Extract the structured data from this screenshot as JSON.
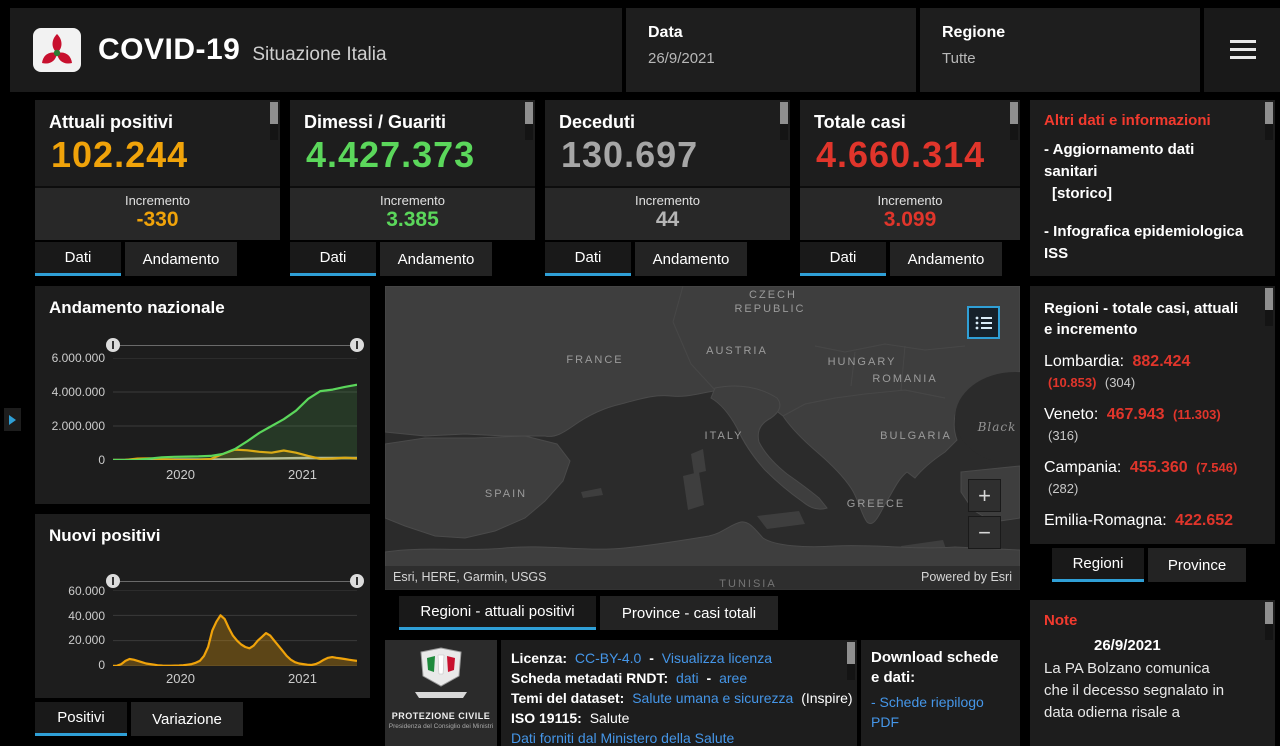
{
  "colors": {
    "accent_blue": "#2f9fd6",
    "link_blue": "#4596e8",
    "orange": "#f0a30a",
    "green": "#5bd75b",
    "gray": "#a6a6a6",
    "red": "#e0352b",
    "heading_red": "#f23a2e"
  },
  "labels": {
    "dati": "Dati",
    "andamento": "Andamento",
    "incremento": "Incremento"
  },
  "header": {
    "title": "COVID-19",
    "subtitle": "Situazione Italia",
    "data_label": "Data",
    "data_value": "26/9/2021",
    "regione_label": "Regione",
    "regione_value": "Tutte"
  },
  "cards": [
    {
      "title": "Attuali positivi",
      "value": "102.244",
      "increment": "-330",
      "color": "#f0a30a"
    },
    {
      "title": "Dimessi / Guariti",
      "value": "4.427.373",
      "increment": "3.385",
      "color": "#5bd75b"
    },
    {
      "title": "Deceduti",
      "value": "130.697",
      "increment": "44",
      "color": "#a6a6a6"
    },
    {
      "title": "Totale casi",
      "value": "4.660.314",
      "increment": "3.099",
      "color": "#e0352b"
    }
  ],
  "altri_panel": {
    "title": "Altri dati e informazioni",
    "item1": "- Aggiornamento dati sanitari",
    "item2": "[storico]",
    "item3": "- Infografica epidemiologica ISS"
  },
  "regions_panel": {
    "title": "Regioni - totale casi, attuali e incremento",
    "items": [
      {
        "name": "Lombardia:",
        "total": "882.424",
        "attuali": "(10.853)",
        "incremento": "(304)"
      },
      {
        "name": "Veneto:",
        "total": "467.943",
        "attuali": "(11.303)",
        "incremento": "(316)"
      },
      {
        "name": "Campania:",
        "total": "455.360",
        "attuali": "(7.546)",
        "incremento": "(282)"
      },
      {
        "name": "Emilia-Romagna:",
        "total": "422.652",
        "attuali": "",
        "incremento": ""
      }
    ],
    "tab_regioni": "Regioni",
    "tab_province": "Province"
  },
  "note_panel": {
    "title": "Note",
    "date": "26/9/2021",
    "text": "La PA Bolzano comunica che il decesso segnalato in data odierna risale a"
  },
  "map": {
    "labels": {
      "czech": "CZECH",
      "republic": "REPUBLIC",
      "france": "FRANCE",
      "austria": "AUSTRIA",
      "hungary": "HUNGARY",
      "romania": "ROMANIA",
      "italy": "ITALY",
      "bulgaria": "BULGARIA",
      "black": "Black",
      "spain": "SPAIN",
      "greece": "GREECE",
      "tunisia": "TUNISIA"
    },
    "zoom_in": "+",
    "zoom_out": "−",
    "attribution": "Esri, HERE, Garmin, USGS",
    "powered_by": "Powered by Esri",
    "tab_regioni": "Regioni - attuali positivi",
    "tab_province": "Province - casi totali"
  },
  "bottom_tabs": {
    "positivi": "Positivi",
    "variazione": "Variazione"
  },
  "info_panel": {
    "licenza_label": "Licenza:",
    "licenza_link": "CC-BY-4.0",
    "dash": "-",
    "visualizza": "Visualizza licenza",
    "rndt_label": "Scheda metadati RNDT:",
    "rndt_dati": "dati",
    "rndt_aree": "aree",
    "temi_label": "Temi del dataset:",
    "temi_link": "Salute umana e sicurezza",
    "temi_suffix": "(Inspire) -",
    "iso_label": "ISO 19115:",
    "iso_value": "Salute",
    "fonte": "Dati forniti dal Ministero della Salute"
  },
  "download_panel": {
    "title": "Download schede e dati:",
    "link1": "- Schede riepilogo PDF"
  },
  "logo_panel": {
    "name": "PROTEZIONE CIVILE",
    "sub": "Presidenza del Consiglio dei Ministri"
  },
  "chart_data": [
    {
      "id": "andamento",
      "type": "line",
      "title": "Andamento nazionale",
      "ylim": [
        0,
        6000000
      ],
      "yticks": [
        "0",
        "2.000.000",
        "4.000.000",
        "6.000.000"
      ],
      "xticks": [
        "2020",
        "2021"
      ],
      "grid": true,
      "fill_opacity": 0.15,
      "legend_position": "none",
      "series": [
        {
          "name": "Dimessi/Guariti",
          "color": "#5bd75b",
          "values": [
            0,
            2000,
            20000,
            80000,
            160000,
            190000,
            200000,
            210000,
            240000,
            350000,
            650000,
            1100000,
            1600000,
            2000000,
            2400000,
            2900000,
            3600000,
            4050000,
            4140000,
            4300000,
            4430000
          ]
        },
        {
          "name": "Attuali positivi",
          "color": "#f0a30a",
          "values": [
            0,
            5000,
            80000,
            100000,
            50000,
            20000,
            13000,
            20000,
            60000,
            350000,
            610000,
            570000,
            480000,
            430000,
            560000,
            430000,
            240000,
            70000,
            90000,
            135000,
            102000
          ]
        },
        {
          "name": "Deceduti",
          "color": "#bdbdbd",
          "values": [
            0,
            1000,
            10000,
            28000,
            33000,
            34000,
            35000,
            35000,
            36000,
            39000,
            54000,
            74000,
            88000,
            97000,
            108000,
            120000,
            126000,
            127000,
            128000,
            129000,
            130000
          ]
        }
      ]
    },
    {
      "id": "nuovi",
      "type": "area",
      "title": "Nuovi positivi",
      "ylim": [
        0,
        60000
      ],
      "yticks": [
        "0",
        "20.000",
        "40.000",
        "60.000"
      ],
      "xticks": [
        "2020",
        "2021"
      ],
      "grid": true,
      "fill_opacity": 0.3,
      "legend_position": "none",
      "series": [
        {
          "name": "Nuovi positivi",
          "color": "#f0a30a",
          "values": [
            100,
            200,
            1500,
            4000,
            5500,
            5000,
            4000,
            3000,
            2000,
            1500,
            1000,
            500,
            300,
            200,
            250,
            300,
            400,
            600,
            1000,
            1500,
            2500,
            4000,
            8000,
            15000,
            28000,
            35000,
            40000,
            37000,
            30000,
            24000,
            20000,
            17000,
            15000,
            14000,
            16000,
            20000,
            23000,
            26000,
            24000,
            20000,
            16000,
            12000,
            8000,
            5000,
            3000,
            2000,
            1500,
            1000,
            800,
            1500,
            3000,
            5000,
            6500,
            7000,
            6500,
            6000,
            5500,
            5000,
            4500,
            4000
          ]
        }
      ]
    }
  ]
}
